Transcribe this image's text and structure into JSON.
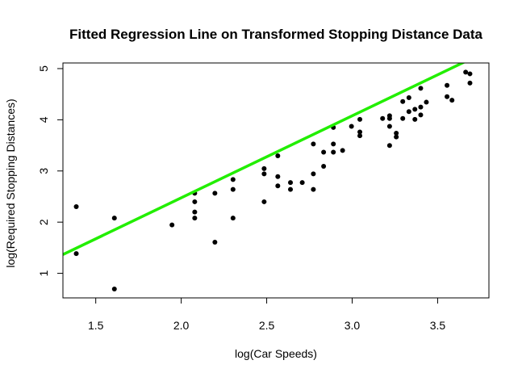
{
  "chart_data": {
    "type": "scatter",
    "title": "Fitted Regression Line on Transformed Stopping Distance Data",
    "xlabel": "log(Car Speeds)",
    "ylabel": "log(Required Stopping Distances)",
    "xlim": [
      1.308,
      3.8
    ],
    "ylim": [
      0.52,
      5.11
    ],
    "xticks": [
      1.5,
      2.0,
      2.5,
      3.0,
      3.5
    ],
    "yticks": [
      1,
      2,
      3,
      4,
      5
    ],
    "xtick_labels": [
      "1.5",
      "2.0",
      "2.5",
      "3.0",
      "3.5"
    ],
    "ytick_labels": [
      "1",
      "2",
      "3",
      "4",
      "5"
    ],
    "grid": false,
    "legend": "none",
    "points": [
      [
        1.386,
        1.386
      ],
      [
        1.386,
        2.303
      ],
      [
        1.609,
        0.693
      ],
      [
        1.609,
        2.079
      ],
      [
        1.946,
        1.946
      ],
      [
        2.079,
        2.079
      ],
      [
        2.079,
        2.197
      ],
      [
        2.079,
        2.398
      ],
      [
        2.079,
        2.565
      ],
      [
        2.197,
        1.609
      ],
      [
        2.197,
        2.565
      ],
      [
        2.303,
        2.079
      ],
      [
        2.303,
        2.639
      ],
      [
        2.303,
        2.833
      ],
      [
        2.485,
        2.398
      ],
      [
        2.485,
        2.944
      ],
      [
        2.485,
        3.045
      ],
      [
        2.565,
        2.708
      ],
      [
        2.565,
        2.89
      ],
      [
        2.565,
        3.296
      ],
      [
        2.639,
        2.639
      ],
      [
        2.639,
        2.773
      ],
      [
        2.708,
        2.773
      ],
      [
        2.773,
        2.639
      ],
      [
        2.773,
        2.944
      ],
      [
        2.773,
        3.526
      ],
      [
        2.833,
        3.091
      ],
      [
        2.833,
        3.367
      ],
      [
        2.89,
        3.367
      ],
      [
        2.89,
        3.526
      ],
      [
        2.89,
        3.85
      ],
      [
        2.944,
        3.401
      ],
      [
        2.996,
        3.871
      ],
      [
        3.045,
        3.689
      ],
      [
        3.045,
        3.761
      ],
      [
        3.045,
        4.007
      ],
      [
        3.178,
        4.025
      ],
      [
        3.219,
        3.497
      ],
      [
        3.219,
        3.871
      ],
      [
        3.219,
        4.025
      ],
      [
        3.219,
        4.078
      ],
      [
        3.258,
        3.664
      ],
      [
        3.258,
        3.738
      ],
      [
        3.296,
        4.025
      ],
      [
        3.296,
        4.357
      ],
      [
        3.332,
        4.159
      ],
      [
        3.332,
        4.431
      ],
      [
        3.367,
        4.007
      ],
      [
        3.367,
        4.205
      ],
      [
        3.401,
        4.094
      ],
      [
        3.401,
        4.248
      ],
      [
        3.401,
        4.615
      ],
      [
        3.434,
        4.344
      ],
      [
        3.555,
        4.452
      ],
      [
        3.555,
        4.673
      ],
      [
        3.584,
        4.382
      ],
      [
        3.664,
        4.931
      ],
      [
        3.689,
        4.718
      ],
      [
        3.689,
        4.898
      ]
    ],
    "regression_line": {
      "intercept": -0.7297,
      "slope": 1.6024
    },
    "colors": {
      "points": "#000000",
      "line": "#22ee00",
      "axes": "#000000"
    }
  }
}
